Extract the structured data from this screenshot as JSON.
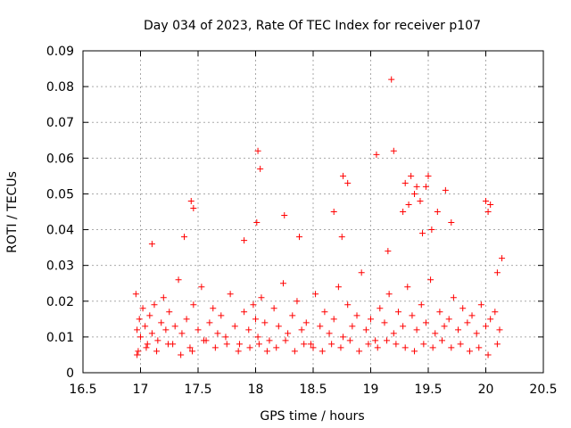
{
  "chart_data": {
    "type": "scatter",
    "title": "Day 034 of 2023, Rate Of TEC Index for receiver p107",
    "xlabel": "GPS time / hours",
    "ylabel": "ROTI / TECUs",
    "xlim": [
      16.5,
      20.5
    ],
    "ylim": [
      0,
      0.09
    ],
    "xticks": [
      "16.5",
      "17",
      "17.5",
      "18",
      "18.5",
      "19",
      "19.5",
      "20",
      "20.5"
    ],
    "yticks": [
      "0",
      "0.01",
      "0.02",
      "0.03",
      "0.04",
      "0.05",
      "0.06",
      "0.07",
      "0.08",
      "0.09"
    ],
    "grid": true,
    "marker": "+",
    "marker_color": "#ff0000",
    "series": [
      {
        "x": [
          16.96,
          16.97,
          16.98,
          16.99,
          17.0,
          17.02,
          17.04,
          17.06,
          17.08,
          17.1,
          17.12,
          17.15,
          17.18,
          17.2,
          17.22,
          17.25,
          17.28,
          17.3,
          17.33,
          17.36,
          17.4,
          17.43,
          17.46,
          17.5,
          17.53,
          17.57,
          17.6,
          17.63,
          17.67,
          17.7,
          17.74,
          17.78,
          17.82,
          17.86,
          17.9,
          17.94,
          17.98,
          18.0,
          18.02,
          18.05,
          18.08,
          18.12,
          18.16,
          18.2,
          18.24,
          18.28,
          18.32,
          18.36,
          18.4,
          18.44,
          18.48,
          18.52,
          18.56,
          18.6,
          18.64,
          18.68,
          18.72,
          18.76,
          18.8,
          18.84,
          18.88,
          18.92,
          18.96,
          19.0,
          19.04,
          19.08,
          19.12,
          19.16,
          19.2,
          19.24,
          19.28,
          19.32,
          19.36,
          19.4,
          19.44,
          19.48,
          19.52,
          19.56,
          19.6,
          19.64,
          19.68,
          19.72,
          19.76,
          19.8,
          19.84,
          19.88,
          19.92,
          19.96,
          20.0,
          20.04,
          20.08,
          20.12,
          16.97,
          17.05,
          17.14,
          17.24,
          17.35,
          17.45,
          17.55,
          17.65,
          17.75,
          17.85,
          17.95,
          18.03,
          18.1,
          18.18,
          18.26,
          18.34,
          18.42,
          18.5,
          18.58,
          18.66,
          18.74,
          18.82,
          18.9,
          18.98,
          19.06,
          19.14,
          19.22,
          19.3,
          19.38,
          19.46,
          19.54,
          19.62,
          19.7,
          19.78,
          19.86,
          19.94,
          20.02,
          20.1,
          17.1,
          17.38,
          17.44,
          17.46,
          17.9,
          18.01,
          18.02,
          18.04,
          18.25,
          18.38,
          18.68,
          18.75,
          18.76,
          18.8,
          19.05,
          19.15,
          19.18,
          19.2,
          19.28,
          19.3,
          19.33,
          19.35,
          19.38,
          19.4,
          19.43,
          19.45,
          19.48,
          19.5,
          19.53,
          19.58,
          19.65,
          19.7,
          20.0,
          20.02,
          20.04,
          20.1,
          20.14
        ],
        "y": [
          0.022,
          0.012,
          0.006,
          0.015,
          0.01,
          0.018,
          0.013,
          0.008,
          0.016,
          0.011,
          0.019,
          0.009,
          0.014,
          0.021,
          0.012,
          0.017,
          0.008,
          0.013,
          0.026,
          0.011,
          0.015,
          0.007,
          0.019,
          0.012,
          0.024,
          0.009,
          0.014,
          0.018,
          0.011,
          0.016,
          0.01,
          0.022,
          0.013,
          0.008,
          0.017,
          0.012,
          0.019,
          0.015,
          0.01,
          0.021,
          0.014,
          0.009,
          0.018,
          0.013,
          0.025,
          0.011,
          0.016,
          0.02,
          0.012,
          0.014,
          0.008,
          0.022,
          0.013,
          0.017,
          0.011,
          0.015,
          0.024,
          0.01,
          0.019,
          0.013,
          0.016,
          0.028,
          0.012,
          0.015,
          0.009,
          0.018,
          0.014,
          0.022,
          0.011,
          0.017,
          0.013,
          0.024,
          0.016,
          0.012,
          0.019,
          0.014,
          0.026,
          0.011,
          0.017,
          0.013,
          0.015,
          0.021,
          0.012,
          0.018,
          0.014,
          0.016,
          0.011,
          0.019,
          0.013,
          0.015,
          0.017,
          0.012,
          0.005,
          0.007,
          0.006,
          0.008,
          0.005,
          0.006,
          0.009,
          0.007,
          0.008,
          0.006,
          0.007,
          0.008,
          0.006,
          0.007,
          0.009,
          0.006,
          0.008,
          0.007,
          0.006,
          0.008,
          0.007,
          0.009,
          0.006,
          0.008,
          0.007,
          0.009,
          0.008,
          0.007,
          0.006,
          0.008,
          0.007,
          0.009,
          0.007,
          0.008,
          0.006,
          0.007,
          0.005,
          0.008,
          0.036,
          0.038,
          0.048,
          0.046,
          0.037,
          0.042,
          0.062,
          0.057,
          0.044,
          0.038,
          0.045,
          0.038,
          0.055,
          0.053,
          0.061,
          0.034,
          0.082,
          0.062,
          0.045,
          0.053,
          0.047,
          0.055,
          0.05,
          0.052,
          0.048,
          0.039,
          0.052,
          0.055,
          0.04,
          0.045,
          0.051,
          0.042,
          0.048,
          0.045,
          0.047,
          0.028,
          0.032
        ]
      }
    ]
  }
}
